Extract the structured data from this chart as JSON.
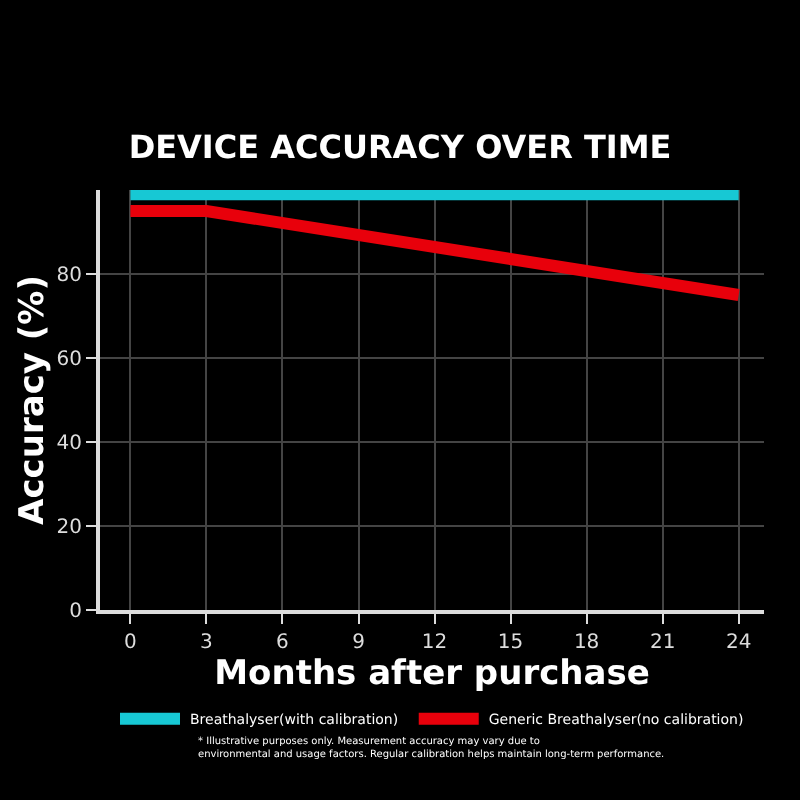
{
  "chart_data": {
    "type": "line",
    "title": "DEVICE ACCURACY OVER TIME",
    "xlabel": "Months after purchase",
    "ylabel": "Accuracy (%)",
    "x": [
      0,
      3,
      24
    ],
    "series": [
      {
        "name": "Breathalyser(with calibration)",
        "color": "#17c8d4",
        "values": [
          99,
          99,
          99
        ]
      },
      {
        "name": "Generic Breathalyser(no calibration)",
        "color": "#e8000b",
        "values": [
          95,
          95,
          75
        ]
      }
    ],
    "xlim": [
      -1.2,
      25
    ],
    "xticks": [
      0,
      3,
      6,
      9,
      12,
      15,
      18,
      21,
      24
    ],
    "ylim": [
      0,
      100
    ],
    "yticks": [
      0,
      20,
      40,
      60,
      80
    ],
    "grid": true,
    "legend": "bottom",
    "marker": "none",
    "line_style": "solid",
    "annotations": [
      "* Illustrative purposes only. Measurement accuracy may vary due to environmental and usage factors. Regular calibration helps maintain long-term performance."
    ]
  }
}
